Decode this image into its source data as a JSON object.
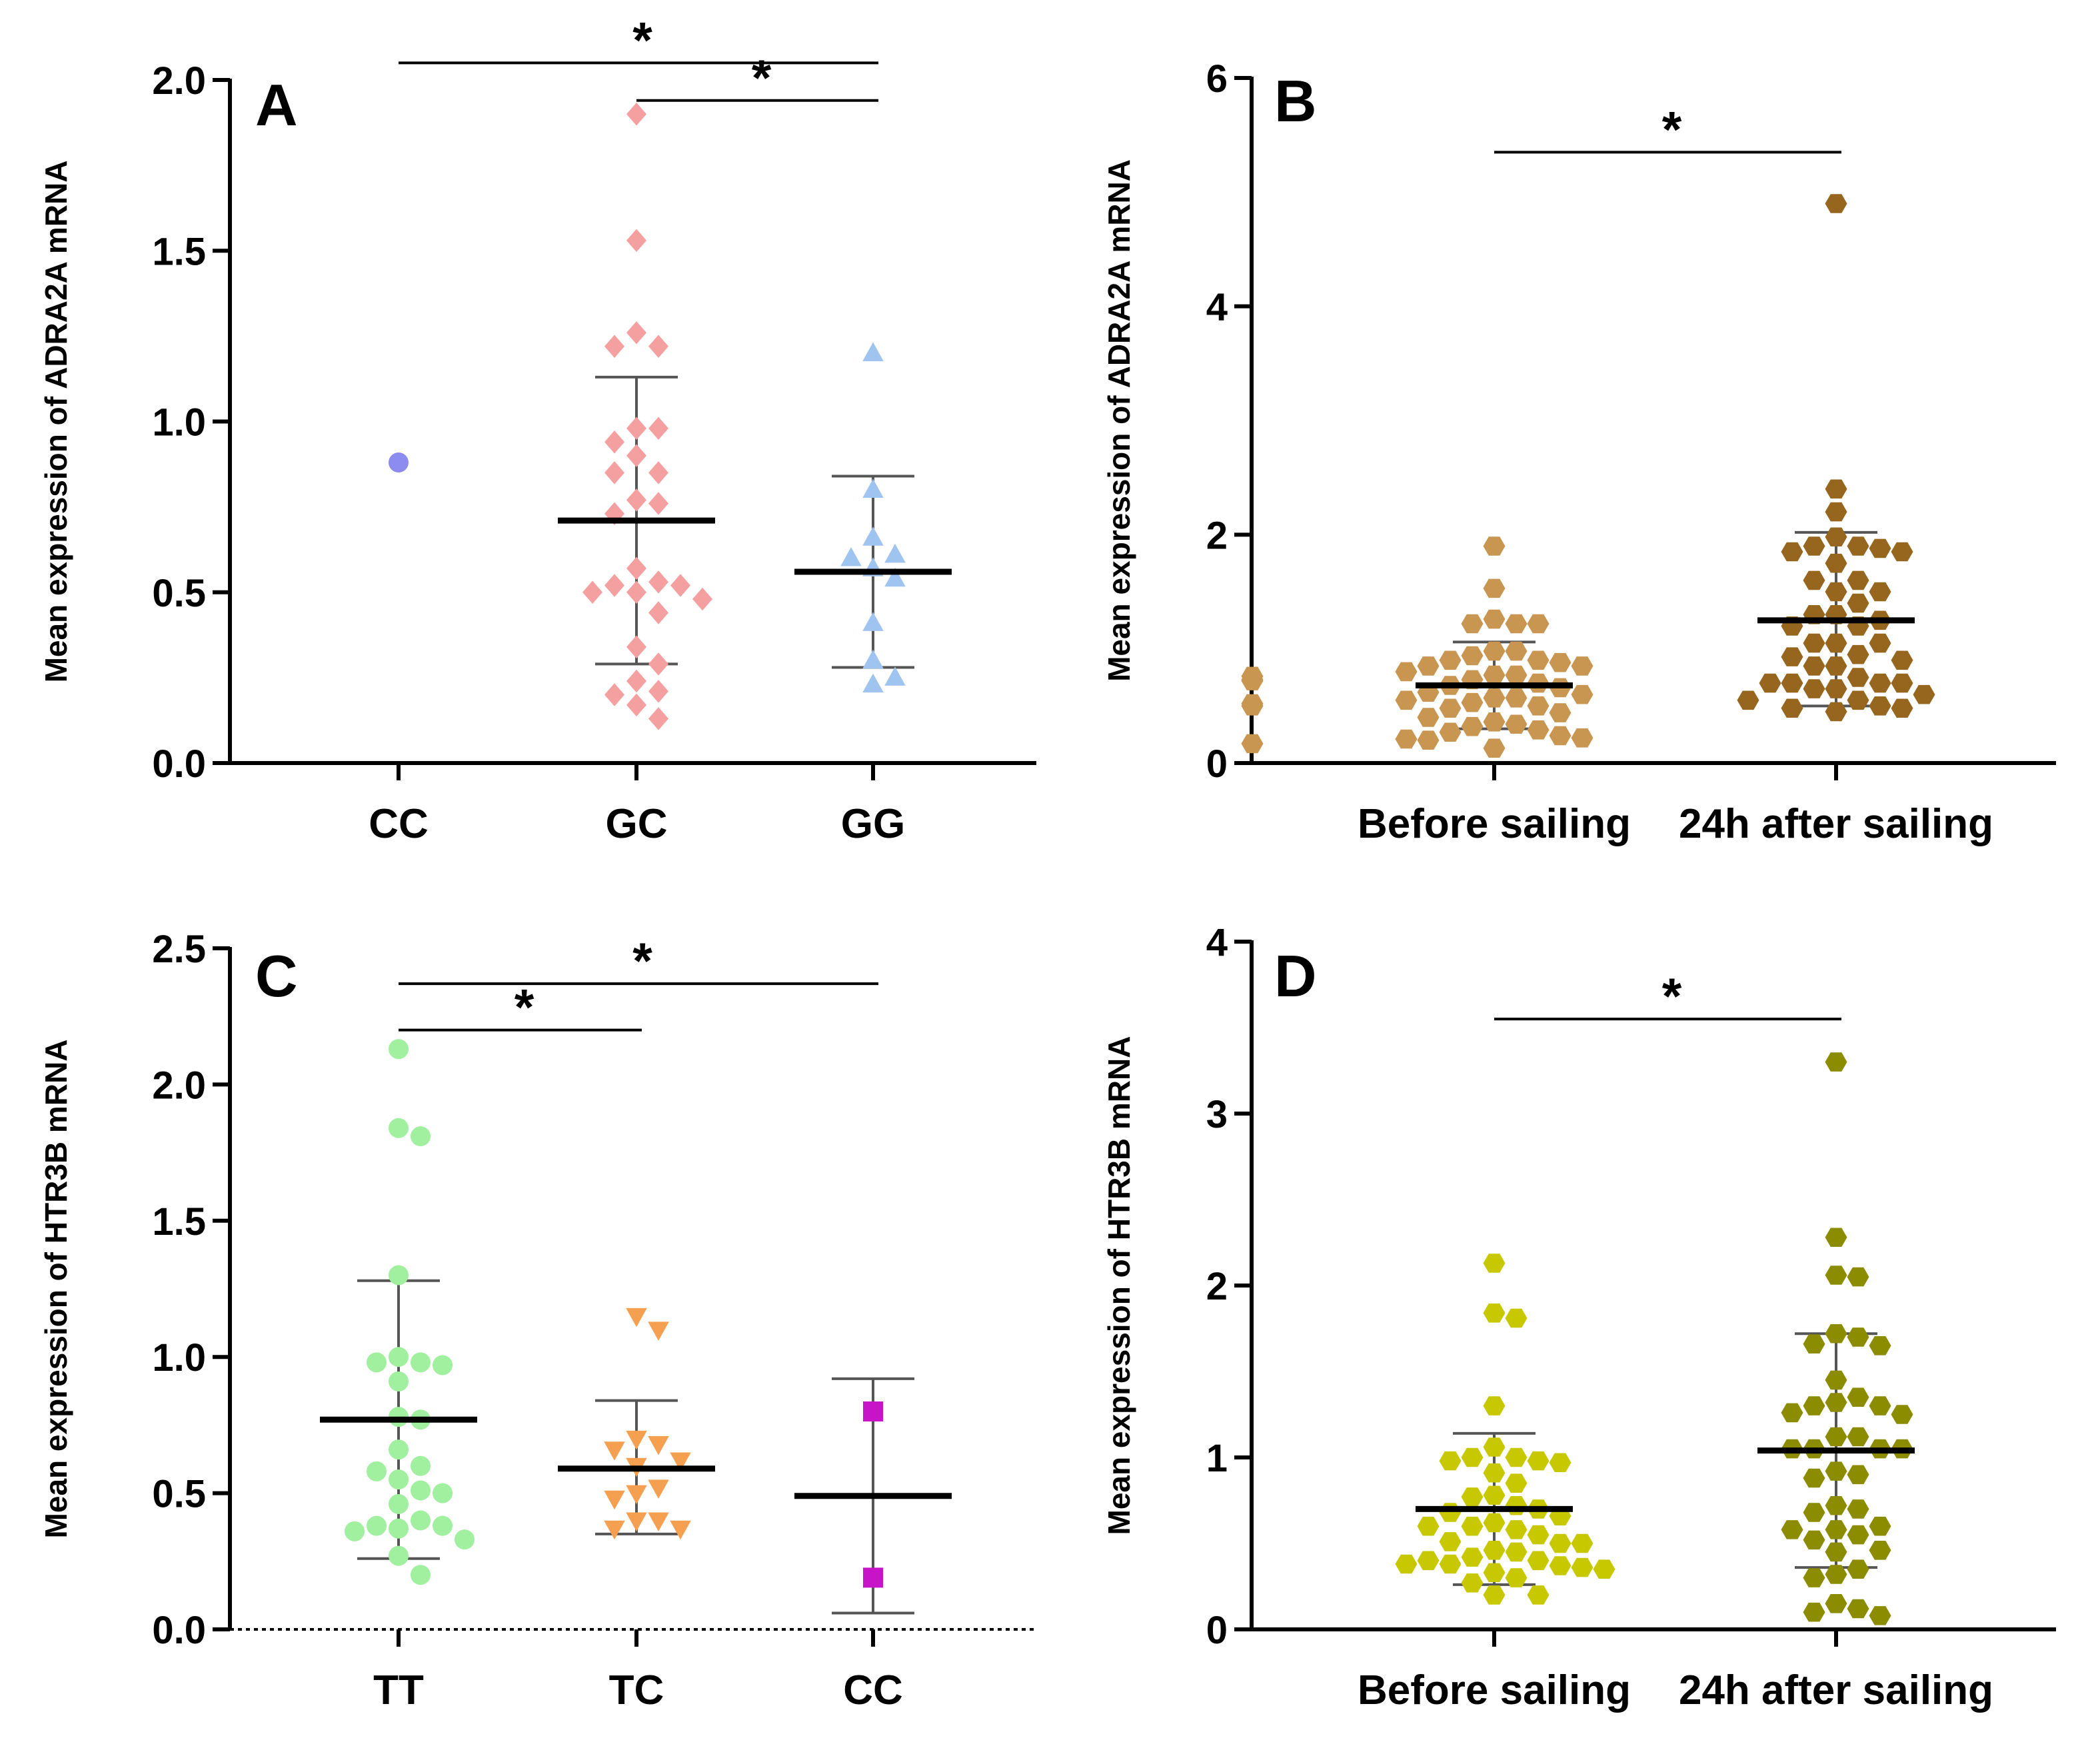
{
  "chart_data": [
    {
      "type": "scatter",
      "panel": "A",
      "ylabel": "Mean expression of ADRA2A mRNA",
      "ylim": [
        0,
        2.0
      ],
      "yticks": [
        "0.0",
        "0.5",
        "1.0",
        "1.5",
        "2.0"
      ],
      "categories": [
        "CC",
        "GC",
        "GG"
      ],
      "colors": [
        "#8c8cf0",
        "#f5a0a0",
        "#a0c4f0"
      ],
      "markers": [
        "circle",
        "diamond",
        "triangle"
      ],
      "series": [
        {
          "name": "CC",
          "values": [
            0.88
          ],
          "mean": null,
          "sd": null
        },
        {
          "name": "GC",
          "values": [
            1.9,
            1.53,
            1.26,
            1.22,
            1.22,
            0.98,
            0.98,
            0.94,
            0.9,
            0.85,
            0.85,
            0.77,
            0.76,
            0.73,
            0.57,
            0.53,
            0.52,
            0.52,
            0.5,
            0.5,
            0.48,
            0.44,
            0.34,
            0.29,
            0.24,
            0.21,
            0.2,
            0.17,
            0.13
          ],
          "mean": 0.71,
          "sd": [
            0.29,
            1.13
          ]
        },
        {
          "name": "GG",
          "values": [
            1.2,
            0.8,
            0.66,
            0.61,
            0.6,
            0.57,
            0.54,
            0.41,
            0.3,
            0.25,
            0.23
          ],
          "mean": 0.56,
          "sd": [
            0.28,
            0.84
          ]
        }
      ],
      "significance": [
        {
          "from": "CC",
          "to": "GG",
          "label": "*",
          "level": 2.05
        },
        {
          "from": "GC",
          "to": "GG",
          "label": "*",
          "level": 1.94
        }
      ]
    },
    {
      "type": "scatter",
      "panel": "B",
      "ylabel": "Mean expression of ADRA2A mRNA",
      "ylim": [
        0,
        6
      ],
      "yticks": [
        "0",
        "2",
        "4",
        "6"
      ],
      "categories": [
        "Before sailing",
        "24h after sailing"
      ],
      "colors": [
        "#c89650",
        "#96661e"
      ],
      "markers": [
        "hexagon",
        "hexagon"
      ],
      "series": [
        {
          "name": "Before sailing",
          "values": [
            1.9,
            1.53,
            1.26,
            1.22,
            1.22,
            1.22,
            0.98,
            0.98,
            0.94,
            0.9,
            0.9,
            0.88,
            0.85,
            0.85,
            0.8,
            0.77,
            0.77,
            0.76,
            0.73,
            0.73,
            0.72,
            0.7,
            0.68,
            0.66,
            0.62,
            0.6,
            0.57,
            0.57,
            0.55,
            0.53,
            0.52,
            0.5,
            0.5,
            0.48,
            0.44,
            0.4,
            0.36,
            0.34,
            0.32,
            0.29,
            0.27,
            0.24,
            0.22,
            0.21,
            0.2,
            0.17,
            0.13
          ],
          "mean": 0.68,
          "sd": [
            0.3,
            1.06
          ]
        },
        {
          "name": "24h after sailing",
          "values": [
            4.9,
            2.4,
            2.2,
            1.98,
            1.9,
            1.9,
            1.88,
            1.85,
            1.85,
            1.75,
            1.6,
            1.6,
            1.5,
            1.5,
            1.4,
            1.3,
            1.3,
            1.25,
            1.2,
            1.2,
            1.05,
            1.05,
            1.05,
            0.95,
            0.93,
            0.9,
            0.85,
            0.85,
            0.75,
            0.7,
            0.7,
            0.7,
            0.7,
            0.65,
            0.65,
            0.6,
            0.55,
            0.55,
            0.5,
            0.48,
            0.48,
            0.45
          ],
          "mean": 1.25,
          "sd": [
            0.5,
            2.02
          ]
        }
      ],
      "significance": [
        {
          "from": "Before sailing",
          "to": "24h after sailing",
          "label": "*",
          "level": 5.35
        }
      ]
    },
    {
      "type": "scatter",
      "panel": "C",
      "ylabel": "Mean expression of HTR3B mRNA",
      "ylim": [
        0,
        2.5
      ],
      "yticks": [
        "0.0",
        "0.5",
        "1.0",
        "1.5",
        "2.0",
        "2.5"
      ],
      "categories": [
        "TT",
        "TC",
        "CC"
      ],
      "colors": [
        "#a0f0a0",
        "#f5a050",
        "#c814c8"
      ],
      "markers": [
        "circle",
        "triangle-down",
        "square"
      ],
      "series": [
        {
          "name": "TT",
          "values": [
            2.13,
            1.84,
            1.81,
            1.3,
            1.0,
            0.98,
            0.98,
            0.97,
            0.91,
            0.78,
            0.77,
            0.66,
            0.6,
            0.58,
            0.55,
            0.51,
            0.5,
            0.46,
            0.4,
            0.38,
            0.38,
            0.37,
            0.36,
            0.33,
            0.27,
            0.2
          ],
          "mean": 0.77,
          "sd": [
            0.26,
            1.28
          ]
        },
        {
          "name": "TC",
          "values": [
            1.15,
            1.1,
            0.7,
            0.68,
            0.66,
            0.62,
            0.6,
            0.52,
            0.5,
            0.48,
            0.4,
            0.4,
            0.37,
            0.37
          ],
          "mean": 0.59,
          "sd": [
            0.35,
            0.84
          ]
        },
        {
          "name": "CC",
          "values": [
            0.8,
            0.19
          ],
          "mean": 0.49,
          "sd": [
            0.06,
            0.92
          ]
        }
      ],
      "significance": [
        {
          "from": "TT",
          "to": "CC",
          "label": "*",
          "level": 2.37
        },
        {
          "from": "TT",
          "to": "TC",
          "label": "*",
          "level": 2.2
        }
      ]
    },
    {
      "type": "scatter",
      "panel": "D",
      "ylabel": "Mean expression of HTR3B mRNA",
      "ylim": [
        0,
        4
      ],
      "yticks": [
        "0",
        "1",
        "2",
        "3",
        "4"
      ],
      "categories": [
        "Before sailing",
        "24h after sailing"
      ],
      "colors": [
        "#c8c800",
        "#8c8c00"
      ],
      "markers": [
        "hexagon",
        "hexagon"
      ],
      "series": [
        {
          "name": "Before sailing",
          "values": [
            2.13,
            1.84,
            1.81,
            1.3,
            1.06,
            1.0,
            1.0,
            0.98,
            0.98,
            0.97,
            0.91,
            0.85,
            0.78,
            0.77,
            0.72,
            0.7,
            0.68,
            0.66,
            0.62,
            0.6,
            0.6,
            0.58,
            0.55,
            0.51,
            0.5,
            0.5,
            0.46,
            0.45,
            0.42,
            0.4,
            0.4,
            0.38,
            0.38,
            0.37,
            0.36,
            0.35,
            0.33,
            0.3,
            0.27,
            0.2,
            0.2
          ],
          "mean": 0.7,
          "sd": [
            0.26,
            1.14
          ]
        },
        {
          "name": "24h after sailing",
          "values": [
            3.3,
            2.28,
            2.06,
            2.05,
            1.72,
            1.7,
            1.66,
            1.65,
            1.45,
            1.35,
            1.32,
            1.3,
            1.3,
            1.26,
            1.25,
            1.12,
            1.12,
            1.05,
            1.05,
            1.05,
            1.05,
            0.92,
            0.9,
            0.88,
            0.72,
            0.7,
            0.68,
            0.6,
            0.58,
            0.58,
            0.55,
            0.52,
            0.46,
            0.45,
            0.35,
            0.32,
            0.3,
            0.15,
            0.12,
            0.1,
            0.08
          ],
          "mean": 1.04,
          "sd": [
            0.36,
            1.72
          ]
        }
      ],
      "significance": [
        {
          "from": "Before sailing",
          "to": "24h after sailing",
          "label": "*",
          "level": 3.55
        }
      ]
    }
  ]
}
